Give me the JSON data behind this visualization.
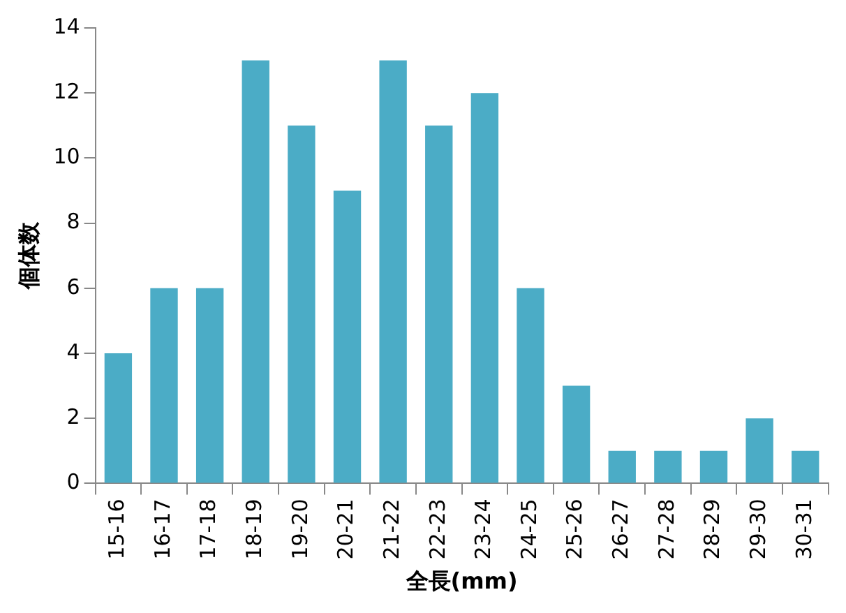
{
  "chart_data": {
    "type": "bar",
    "xlabel": "全長(mm)",
    "ylabel": "個体数",
    "categories": [
      "15-16",
      "16-17",
      "17-18",
      "18-19",
      "19-20",
      "20-21",
      "21-22",
      "22-23",
      "23-24",
      "24-25",
      "25-26",
      "26-27",
      "27-28",
      "28-29",
      "29-30",
      "30-31"
    ],
    "values": [
      4,
      6,
      6,
      13,
      11,
      9,
      13,
      11,
      12,
      6,
      3,
      1,
      1,
      1,
      2,
      1
    ],
    "color": "#4bacc6",
    "ylim": [
      0,
      14
    ],
    "yticks": [
      0,
      2,
      4,
      6,
      8,
      10,
      12,
      14
    ],
    "grid": false
  }
}
